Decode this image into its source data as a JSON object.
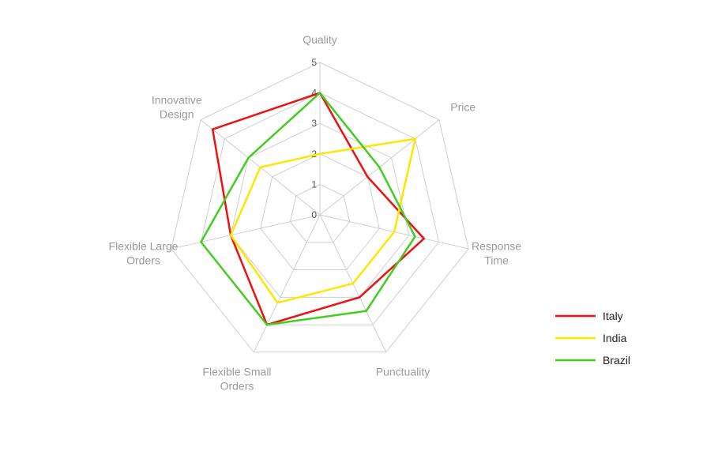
{
  "chart_data": {
    "type": "radar",
    "title": "",
    "axes": [
      "Quality",
      "Price",
      "Response Time",
      "Punctuality",
      "Flexible Small Orders",
      "Flexible Large Orders",
      "Innovative Design"
    ],
    "axis_label_lines": [
      [
        "Quality"
      ],
      [
        "Price"
      ],
      [
        "Response",
        "Time"
      ],
      [
        "Punctuality"
      ],
      [
        "Flexible Small",
        "Orders"
      ],
      [
        "Flexible Large",
        "Orders"
      ],
      [
        "Innovative",
        "Design"
      ]
    ],
    "rlim": [
      0,
      5
    ],
    "ticks": [
      "0",
      "1",
      "2",
      "3",
      "4",
      "5"
    ],
    "grid": true,
    "legend_position": "right",
    "series": [
      {
        "name": "Italy",
        "color": "#ee1111",
        "values": [
          4,
          2,
          3.5,
          3,
          4,
          3,
          4.5
        ]
      },
      {
        "name": "India",
        "color": "#ffe600",
        "values": [
          2,
          4,
          2.5,
          2.5,
          3.2,
          3,
          2.5
        ]
      },
      {
        "name": "Brazil",
        "color": "#44cc22",
        "values": [
          4,
          2.5,
          3.2,
          3.5,
          4,
          4,
          3
        ]
      }
    ]
  }
}
